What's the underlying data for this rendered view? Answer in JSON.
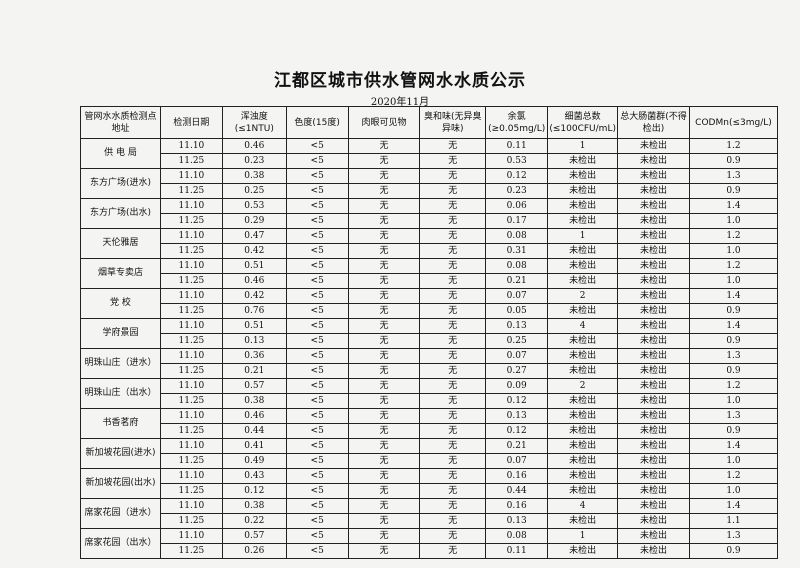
{
  "title": "江都区城市供水管网水水质公示",
  "date": "2020年11月",
  "headers": [
    "管网水水质检测点地址",
    "检测日期",
    "浑浊度(≤1NTU)",
    "色度(15度)",
    "肉眼可见物",
    "臭和味(无异臭异味)",
    "余氯(≥0.05mg/L)",
    "细菌总数(≤100CFU/mL)",
    "总大肠菌群(不得检出)",
    "CODMn(≤3mg/L)"
  ],
  "sites": [
    {
      "name": "供 电 局",
      "rows": [
        [
          "11.10",
          "0.46",
          "<5",
          "无",
          "无",
          "0.11",
          "1",
          "未检出",
          "1.2"
        ],
        [
          "11.25",
          "0.23",
          "<5",
          "无",
          "无",
          "0.53",
          "未检出",
          "未检出",
          "0.9"
        ]
      ]
    },
    {
      "name": "东方广场(进水)",
      "rows": [
        [
          "11.10",
          "0.38",
          "<5",
          "无",
          "无",
          "0.12",
          "未检出",
          "未检出",
          "1.3"
        ],
        [
          "11.25",
          "0.25",
          "<5",
          "无",
          "无",
          "0.23",
          "未检出",
          "未检出",
          "0.9"
        ]
      ]
    },
    {
      "name": "东方广场(出水)",
      "rows": [
        [
          "11.10",
          "0.53",
          "<5",
          "无",
          "无",
          "0.06",
          "未检出",
          "未检出",
          "1.4"
        ],
        [
          "11.25",
          "0.29",
          "<5",
          "无",
          "无",
          "0.17",
          "未检出",
          "未检出",
          "1.0"
        ]
      ]
    },
    {
      "name": "天伦雅居",
      "rows": [
        [
          "11.10",
          "0.47",
          "<5",
          "无",
          "无",
          "0.08",
          "1",
          "未检出",
          "1.2"
        ],
        [
          "11.25",
          "0.42",
          "<5",
          "无",
          "无",
          "0.31",
          "未检出",
          "未检出",
          "1.0"
        ]
      ]
    },
    {
      "name": "烟草专卖店",
      "rows": [
        [
          "11.10",
          "0.51",
          "<5",
          "无",
          "无",
          "0.08",
          "未检出",
          "未检出",
          "1.2"
        ],
        [
          "11.25",
          "0.46",
          "<5",
          "无",
          "无",
          "0.21",
          "未检出",
          "未检出",
          "1.0"
        ]
      ]
    },
    {
      "name": "党 校",
      "rows": [
        [
          "11.10",
          "0.42",
          "<5",
          "无",
          "无",
          "0.07",
          "2",
          "未检出",
          "1.4"
        ],
        [
          "11.25",
          "0.76",
          "<5",
          "无",
          "无",
          "0.05",
          "未检出",
          "未检出",
          "0.9"
        ]
      ]
    },
    {
      "name": "学府景园",
      "rows": [
        [
          "11.10",
          "0.51",
          "<5",
          "无",
          "无",
          "0.13",
          "4",
          "未检出",
          "1.4"
        ],
        [
          "11.25",
          "0.13",
          "<5",
          "无",
          "无",
          "0.25",
          "未检出",
          "未检出",
          "0.9"
        ]
      ]
    },
    {
      "name": "明珠山庄（进水）",
      "rows": [
        [
          "11.10",
          "0.36",
          "<5",
          "无",
          "无",
          "0.07",
          "未检出",
          "未检出",
          "1.3"
        ],
        [
          "11.25",
          "0.21",
          "<5",
          "无",
          "无",
          "0.27",
          "未检出",
          "未检出",
          "0.9"
        ]
      ]
    },
    {
      "name": "明珠山庄（出水）",
      "rows": [
        [
          "11.10",
          "0.57",
          "<5",
          "无",
          "无",
          "0.09",
          "2",
          "未检出",
          "1.2"
        ],
        [
          "11.25",
          "0.38",
          "<5",
          "无",
          "无",
          "0.12",
          "未检出",
          "未检出",
          "1.0"
        ]
      ]
    },
    {
      "name": "书香茗府",
      "rows": [
        [
          "11.10",
          "0.46",
          "<5",
          "无",
          "无",
          "0.13",
          "未检出",
          "未检出",
          "1.3"
        ],
        [
          "11.25",
          "0.44",
          "<5",
          "无",
          "无",
          "0.12",
          "未检出",
          "未检出",
          "0.9"
        ]
      ]
    },
    {
      "name": "新加坡花园(进水)",
      "rows": [
        [
          "11.10",
          "0.41",
          "<5",
          "无",
          "无",
          "0.21",
          "未检出",
          "未检出",
          "1.4"
        ],
        [
          "11.25",
          "0.49",
          "<5",
          "无",
          "无",
          "0.07",
          "未检出",
          "未检出",
          "1.0"
        ]
      ]
    },
    {
      "name": "新加坡花园(出水)",
      "rows": [
        [
          "11.10",
          "0.43",
          "<5",
          "无",
          "无",
          "0.16",
          "未检出",
          "未检出",
          "1.2"
        ],
        [
          "11.25",
          "0.12",
          "<5",
          "无",
          "无",
          "0.44",
          "未检出",
          "未检出",
          "1.0"
        ]
      ]
    },
    {
      "name": "席家花园（进水）",
      "rows": [
        [
          "11.10",
          "0.38",
          "<5",
          "无",
          "无",
          "0.16",
          "4",
          "未检出",
          "1.4"
        ],
        [
          "11.25",
          "0.22",
          "<5",
          "无",
          "无",
          "0.13",
          "未检出",
          "未检出",
          "1.1"
        ]
      ]
    },
    {
      "name": "席家花园（出水）",
      "rows": [
        [
          "11.10",
          "0.57",
          "<5",
          "无",
          "无",
          "0.08",
          "1",
          "未检出",
          "1.3"
        ],
        [
          "11.25",
          "0.26",
          "<5",
          "无",
          "无",
          "0.11",
          "未检出",
          "未检出",
          "0.9"
        ]
      ]
    }
  ]
}
